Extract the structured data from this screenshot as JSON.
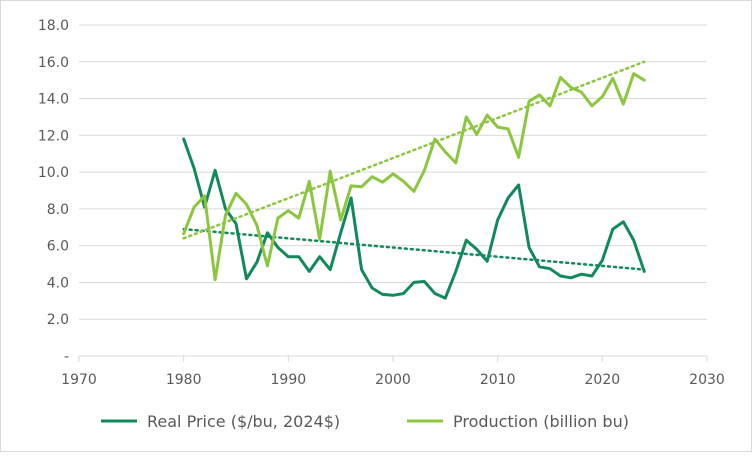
{
  "chart_data": {
    "type": "line",
    "xlim": [
      1970,
      2030
    ],
    "ylim": [
      0,
      18
    ],
    "x_ticks": [
      1970,
      1980,
      1990,
      2000,
      2010,
      2020,
      2030
    ],
    "x_tick_labels": [
      "1970",
      "1980",
      "1990",
      "2000",
      "2010",
      "2020",
      "2030"
    ],
    "y_ticks": [
      0,
      2,
      4,
      6,
      8,
      10,
      12,
      14,
      16,
      18
    ],
    "y_tick_labels": [
      "-",
      "2.0",
      "4.0",
      "6.0",
      "8.0",
      "10.0",
      "12.0",
      "14.0",
      "16.0",
      "18.0"
    ],
    "grid": "horizontal",
    "legend_position": "bottom",
    "x": [
      1980,
      1981,
      1982,
      1983,
      1984,
      1985,
      1986,
      1987,
      1988,
      1989,
      1990,
      1991,
      1992,
      1993,
      1994,
      1995,
      1996,
      1997,
      1998,
      1999,
      2000,
      2001,
      2002,
      2003,
      2004,
      2005,
      2006,
      2007,
      2008,
      2009,
      2010,
      2011,
      2012,
      2013,
      2014,
      2015,
      2016,
      2017,
      2018,
      2019,
      2020,
      2021,
      2022,
      2023,
      2024
    ],
    "series": [
      {
        "name": "Real Price ($/bu, 2024$)",
        "color": "#12895a",
        "values": [
          11.8,
          10.2,
          8.1,
          10.1,
          8.0,
          7.2,
          4.2,
          5.1,
          6.7,
          5.9,
          5.4,
          5.4,
          4.6,
          5.4,
          4.7,
          6.7,
          8.6,
          4.7,
          3.7,
          3.35,
          3.3,
          3.4,
          4.0,
          4.05,
          3.4,
          3.15,
          4.6,
          6.3,
          5.8,
          5.15,
          7.4,
          8.6,
          9.3,
          5.9,
          4.85,
          4.75,
          4.35,
          4.25,
          4.45,
          4.35,
          5.2,
          6.9,
          7.3,
          6.3,
          4.6
        ],
        "trend": [
          6.9,
          4.7
        ]
      },
      {
        "name": "Production (billion bu)",
        "color": "#8cc63f",
        "values": [
          6.65,
          8.1,
          8.7,
          4.15,
          7.65,
          8.85,
          8.25,
          7.1,
          4.9,
          7.5,
          7.9,
          7.5,
          9.5,
          6.35,
          10.05,
          7.4,
          9.25,
          9.2,
          9.75,
          9.45,
          9.9,
          9.5,
          8.95,
          10.1,
          11.8,
          11.1,
          10.5,
          13.0,
          12.05,
          13.1,
          12.45,
          12.35,
          10.8,
          13.85,
          14.2,
          13.6,
          15.15,
          14.6,
          14.35,
          13.6,
          14.1,
          15.1,
          13.7,
          15.35,
          15.0
        ],
        "trend": [
          6.4,
          16.0
        ]
      }
    ]
  }
}
